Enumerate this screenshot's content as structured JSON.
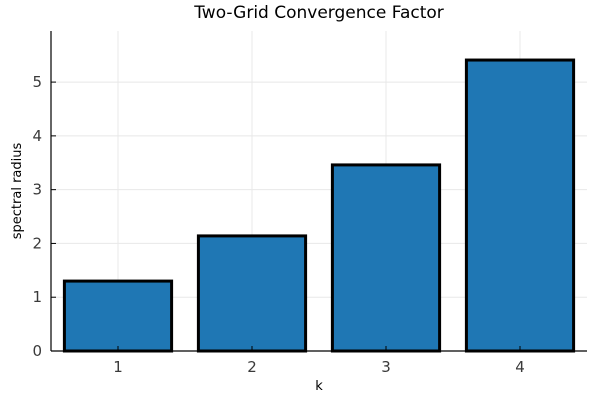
{
  "chart_data": {
    "type": "bar",
    "title": "Two-Grid Convergence Factor",
    "xlabel": "k",
    "ylabel": "spectral radius",
    "categories": [
      "1",
      "2",
      "3",
      "4"
    ],
    "values": [
      1.3,
      2.14,
      3.46,
      5.41
    ],
    "ylim": [
      0,
      5.95
    ],
    "yticks": [
      0,
      1,
      2,
      3,
      4,
      5
    ],
    "grid": true,
    "legend": "none",
    "bar_color": "#1f77b4",
    "bar_edge_color": "#000000"
  }
}
